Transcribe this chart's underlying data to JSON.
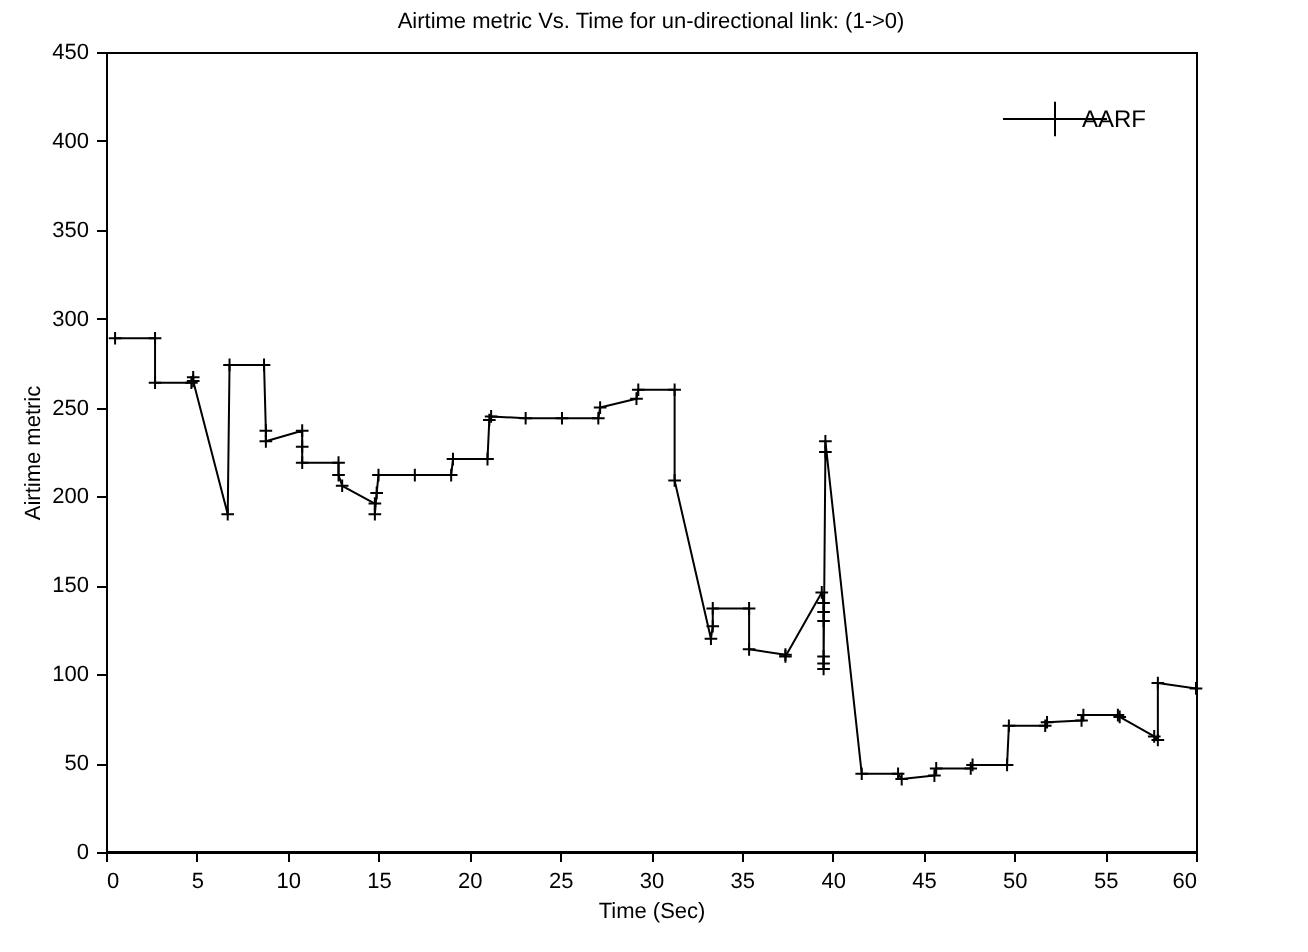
{
  "chart_data": {
    "type": "line",
    "title": "Airtime metric Vs. Time for un-directional link: (1->0)",
    "xlabel": "Time (Sec)",
    "ylabel": "Airtime metric",
    "xlim": [
      0,
      60
    ],
    "ylim": [
      0,
      450
    ],
    "xticks": [
      0,
      5,
      10,
      15,
      20,
      25,
      30,
      35,
      40,
      45,
      50,
      55,
      60
    ],
    "yticks": [
      0,
      50,
      100,
      150,
      200,
      250,
      300,
      350,
      400,
      450
    ],
    "legend": "top right",
    "marker": "cross",
    "line_style": "solid",
    "grid": false,
    "series": [
      {
        "name": "AARF",
        "color": "#000000",
        "x": [
          0.5,
          2.7,
          2.7,
          4.7,
          4.8,
          4.8,
          6.7,
          6.8,
          8.7,
          8.8,
          8.8,
          10.8,
          10.8,
          10.8,
          12.8,
          12.8,
          13.0,
          14.8,
          14.8,
          14.9,
          15.0,
          17.0,
          19.0,
          19.1,
          21.0,
          21.1,
          21.2,
          23.1,
          25.1,
          27.1,
          27.2,
          29.2,
          29.3,
          31.3,
          31.3,
          33.3,
          33.4,
          33.4,
          35.4,
          35.4,
          37.4,
          37.4,
          39.4,
          39.5,
          39.5,
          39.5,
          39.5,
          39.5,
          39.5,
          39.6,
          39.6,
          41.6,
          43.6,
          43.8,
          45.6,
          45.7,
          47.6,
          47.7,
          49.6,
          49.7,
          51.7,
          51.8,
          53.7,
          53.8,
          55.7,
          55.8,
          57.7,
          57.9,
          57.9,
          60
        ],
        "values": [
          289,
          289,
          264,
          264,
          267,
          265,
          190,
          274,
          274,
          237,
          231,
          237,
          228,
          219,
          219,
          212,
          206,
          196,
          190,
          202,
          212,
          212,
          212,
          221,
          221,
          243,
          245,
          244,
          244,
          244,
          250,
          255,
          260,
          260,
          209,
          120,
          127,
          137,
          137,
          114,
          111,
          110,
          146,
          140,
          135,
          130,
          110,
          106,
          103,
          225,
          231,
          44,
          44,
          41,
          43,
          47,
          47,
          49,
          49,
          71,
          71,
          73,
          74,
          77,
          77,
          76,
          65,
          63,
          95,
          92
        ]
      }
    ]
  }
}
